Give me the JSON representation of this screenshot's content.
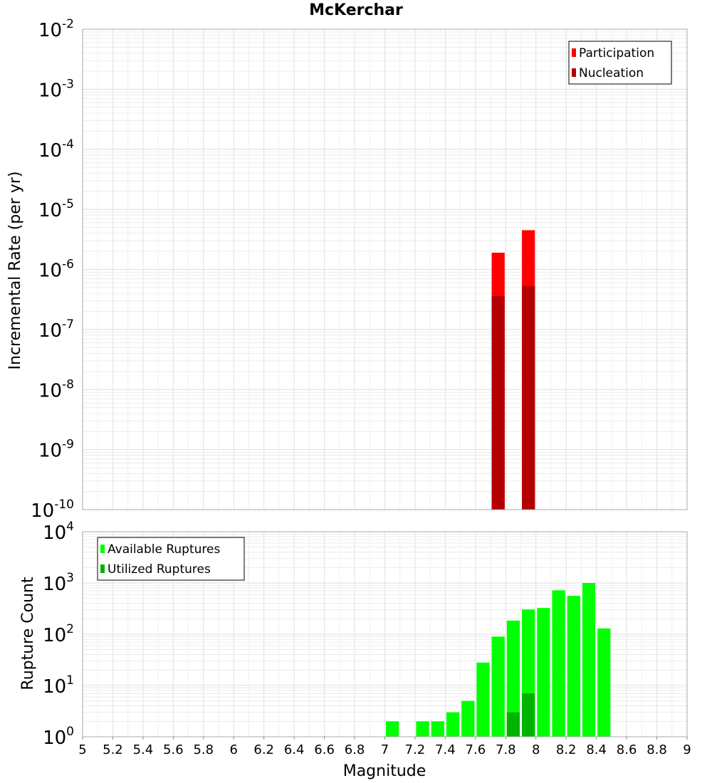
{
  "title": "McKerchar",
  "chart_data": [
    {
      "type": "bar",
      "panel": "top",
      "title": "McKerchar",
      "xlabel": "",
      "ylabel": "Incremental Rate (per yr)",
      "yscale": "log",
      "xlim": [
        5,
        9
      ],
      "ylim_exp": [
        -10,
        -2
      ],
      "y_ticks": [
        -10,
        -9,
        -8,
        -7,
        -6,
        -5,
        -4,
        -3,
        -2
      ],
      "bar_width": 0.1,
      "legend_position": "top-right",
      "grid": true,
      "series": [
        {
          "name": "Participation",
          "color": "#ff0000",
          "x": [
            7.75,
            7.95
          ],
          "values": [
            1.9e-06,
            4.5e-06
          ]
        },
        {
          "name": "Nucleation",
          "color": "#b30000",
          "x": [
            7.75,
            7.95
          ],
          "values": [
            3.6e-07,
            5.3e-07
          ]
        }
      ]
    },
    {
      "type": "bar",
      "panel": "bottom",
      "xlabel": "Magnitude",
      "ylabel": "Rupture Count",
      "yscale": "log",
      "xlim": [
        5,
        9
      ],
      "ylim_exp": [
        0,
        4
      ],
      "y_ticks": [
        0,
        1,
        2,
        3,
        4
      ],
      "x_ticks": [
        "5",
        "5.2",
        "5.4",
        "5.6",
        "5.8",
        "6",
        "6.2",
        "6.4",
        "6.6",
        "6.8",
        "7",
        "7.2",
        "7.4",
        "7.6",
        "7.8",
        "8",
        "8.2",
        "8.4",
        "8.6",
        "8.8",
        "9"
      ],
      "bar_width": 0.1,
      "legend_position": "top-left",
      "grid": true,
      "series": [
        {
          "name": "Available Ruptures",
          "color": "#00ff00",
          "x": [
            7.05,
            7.25,
            7.35,
            7.45,
            7.55,
            7.65,
            7.75,
            7.85,
            7.95,
            8.05,
            8.15,
            8.25,
            8.35,
            8.45
          ],
          "values": [
            2,
            2,
            2,
            3,
            5,
            28,
            90,
            185,
            305,
            325,
            720,
            560,
            1000,
            130
          ]
        },
        {
          "name": "Utilized Ruptures",
          "color": "#00b300",
          "x": [
            7.75,
            7.85,
            7.95,
            8.05
          ],
          "values": [
            1,
            3,
            7,
            1
          ]
        }
      ]
    }
  ]
}
